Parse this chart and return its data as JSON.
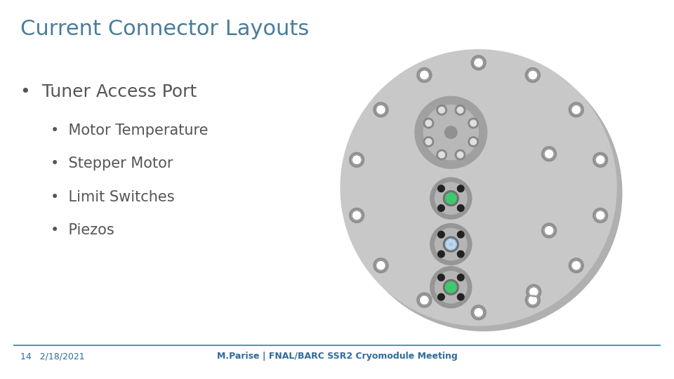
{
  "title": "Current Connector Layouts",
  "title_color": "#4a7c9b",
  "title_fontsize": 22,
  "bullet_main": "Tuner Access Port",
  "bullet_main_fontsize": 18,
  "bullet_sub": [
    "Motor Temperature",
    "Stepper Motor",
    "Limit Switches",
    "Piezos"
  ],
  "bullet_sub_fontsize": 15,
  "text_color": "#555555",
  "footer_left": "14   2/18/2021",
  "footer_right": "M.Parise | FNAL/BARC SSR2 Cryomodule Meeting",
  "footer_color": "#2e6b9e",
  "footer_line_color": "#4a9bbf",
  "bg_color": "#ffffff",
  "disk_color": "#c8c8c8",
  "disk_shadow_color": "#b0b0b0"
}
